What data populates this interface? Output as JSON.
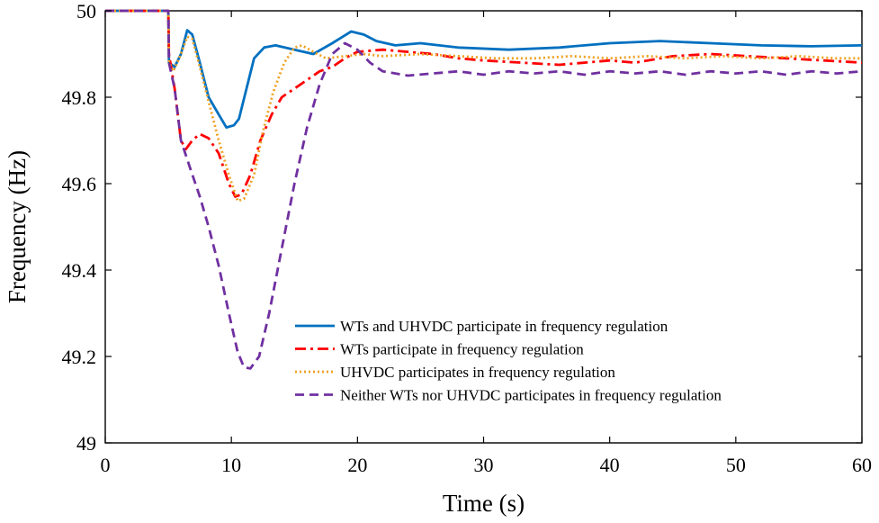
{
  "chart_data": {
    "type": "line",
    "title": "",
    "xlabel": "Time (s)",
    "ylabel": "Frequency (Hz)",
    "xlim": [
      0,
      60
    ],
    "ylim": [
      49,
      50
    ],
    "xticks": [
      0,
      10,
      20,
      30,
      40,
      50,
      60
    ],
    "yticks": [
      49,
      49.2,
      49.4,
      49.6,
      49.8,
      50
    ],
    "xtick_labels": [
      "0",
      "10",
      "20",
      "30",
      "40",
      "50",
      "60"
    ],
    "ytick_labels": [
      "49",
      "49.2",
      "49.4",
      "49.6",
      "49.8",
      "50"
    ],
    "grid": false,
    "legend_position": "bottom-right",
    "series": [
      {
        "name": "WTs and UHVDC participate in frequency regulation",
        "color": "#0070C0",
        "dash": "solid",
        "points": [
          [
            0,
            50
          ],
          [
            5,
            50
          ],
          [
            5.05,
            49.88
          ],
          [
            5.5,
            49.87
          ],
          [
            6,
            49.9
          ],
          [
            6.5,
            49.955
          ],
          [
            6.9,
            49.945
          ],
          [
            7.5,
            49.88
          ],
          [
            8.2,
            49.8
          ],
          [
            9,
            49.76
          ],
          [
            9.6,
            49.73
          ],
          [
            10.2,
            49.735
          ],
          [
            10.6,
            49.75
          ],
          [
            11.2,
            49.82
          ],
          [
            11.8,
            49.89
          ],
          [
            12.6,
            49.915
          ],
          [
            13.5,
            49.92
          ],
          [
            15,
            49.91
          ],
          [
            16.5,
            49.9
          ],
          [
            18,
            49.925
          ],
          [
            19.5,
            49.952
          ],
          [
            20.5,
            49.945
          ],
          [
            21.5,
            49.93
          ],
          [
            23,
            49.92
          ],
          [
            25,
            49.925
          ],
          [
            28,
            49.915
          ],
          [
            32,
            49.91
          ],
          [
            36,
            49.915
          ],
          [
            40,
            49.925
          ],
          [
            44,
            49.93
          ],
          [
            48,
            49.925
          ],
          [
            52,
            49.92
          ],
          [
            56,
            49.918
          ],
          [
            60,
            49.92
          ]
        ]
      },
      {
        "name": "WTs participate in frequency regulation",
        "color": "#FF0000",
        "dash": "12,5,3,5",
        "points": [
          [
            0,
            50
          ],
          [
            5,
            50
          ],
          [
            5.05,
            49.9
          ],
          [
            5.5,
            49.82
          ],
          [
            6,
            49.7
          ],
          [
            6.4,
            49.68
          ],
          [
            6.9,
            49.7
          ],
          [
            7.5,
            49.715
          ],
          [
            8.2,
            49.705
          ],
          [
            9,
            49.67
          ],
          [
            9.8,
            49.6
          ],
          [
            10.3,
            49.57
          ],
          [
            10.8,
            49.575
          ],
          [
            11.5,
            49.62
          ],
          [
            12.3,
            49.7
          ],
          [
            13.2,
            49.76
          ],
          [
            14,
            49.8
          ],
          [
            15,
            49.82
          ],
          [
            16,
            49.84
          ],
          [
            17,
            49.86
          ],
          [
            18,
            49.87
          ],
          [
            19,
            49.89
          ],
          [
            20,
            49.905
          ],
          [
            22,
            49.91
          ],
          [
            24,
            49.905
          ],
          [
            26,
            49.9
          ],
          [
            28,
            49.89
          ],
          [
            30,
            49.885
          ],
          [
            33,
            49.88
          ],
          [
            36,
            49.875
          ],
          [
            38,
            49.88
          ],
          [
            40,
            49.885
          ],
          [
            42,
            49.88
          ],
          [
            45,
            49.895
          ],
          [
            48,
            49.9
          ],
          [
            51,
            49.895
          ],
          [
            54,
            49.89
          ],
          [
            57,
            49.885
          ],
          [
            60,
            49.88
          ]
        ]
      },
      {
        "name": "UHVDC participates in frequency regulation",
        "color": "#F0A020",
        "dash": "2,3",
        "points": [
          [
            0,
            50
          ],
          [
            5,
            50
          ],
          [
            5.05,
            49.88
          ],
          [
            5.4,
            49.86
          ],
          [
            6,
            49.9
          ],
          [
            6.5,
            49.94
          ],
          [
            6.9,
            49.935
          ],
          [
            7.5,
            49.87
          ],
          [
            8.2,
            49.79
          ],
          [
            9,
            49.7
          ],
          [
            9.8,
            49.62
          ],
          [
            10.5,
            49.56
          ],
          [
            11,
            49.565
          ],
          [
            11.8,
            49.62
          ],
          [
            12.5,
            49.72
          ],
          [
            13.3,
            49.81
          ],
          [
            14.2,
            49.88
          ],
          [
            15,
            49.915
          ],
          [
            15.6,
            49.92
          ],
          [
            16.5,
            49.905
          ],
          [
            17.5,
            49.89
          ],
          [
            19,
            49.895
          ],
          [
            20.5,
            49.9
          ],
          [
            22,
            49.895
          ],
          [
            25,
            49.9
          ],
          [
            28,
            49.895
          ],
          [
            31,
            49.89
          ],
          [
            34,
            49.89
          ],
          [
            37,
            49.895
          ],
          [
            40,
            49.89
          ],
          [
            43,
            49.895
          ],
          [
            46,
            49.89
          ],
          [
            49,
            49.895
          ],
          [
            52,
            49.89
          ],
          [
            55,
            49.895
          ],
          [
            58,
            49.89
          ],
          [
            60,
            49.89
          ]
        ]
      },
      {
        "name": "Neither WTs nor UHVDC participates in frequency regulation",
        "color": "#7030A0",
        "dash": "10,6",
        "points": [
          [
            0,
            50
          ],
          [
            5,
            50
          ],
          [
            5.05,
            49.88
          ],
          [
            5.5,
            49.82
          ],
          [
            6,
            49.7
          ],
          [
            6.8,
            49.63
          ],
          [
            7.5,
            49.57
          ],
          [
            8.2,
            49.5
          ],
          [
            9,
            49.41
          ],
          [
            9.8,
            49.3
          ],
          [
            10.5,
            49.21
          ],
          [
            11,
            49.175
          ],
          [
            11.5,
            49.172
          ],
          [
            12.2,
            49.2
          ],
          [
            13,
            49.3
          ],
          [
            14,
            49.45
          ],
          [
            15,
            49.6
          ],
          [
            16,
            49.73
          ],
          [
            17,
            49.83
          ],
          [
            18,
            49.9
          ],
          [
            19,
            49.925
          ],
          [
            20,
            49.91
          ],
          [
            21,
            49.88
          ],
          [
            22,
            49.86
          ],
          [
            24,
            49.85
          ],
          [
            26,
            49.855
          ],
          [
            28,
            49.86
          ],
          [
            30,
            49.852
          ],
          [
            32,
            49.86
          ],
          [
            34,
            49.855
          ],
          [
            36,
            49.86
          ],
          [
            38,
            49.852
          ],
          [
            40,
            49.86
          ],
          [
            42,
            49.855
          ],
          [
            44,
            49.86
          ],
          [
            46,
            49.852
          ],
          [
            48,
            49.86
          ],
          [
            50,
            49.855
          ],
          [
            52,
            49.86
          ],
          [
            54,
            49.852
          ],
          [
            56,
            49.86
          ],
          [
            58,
            49.855
          ],
          [
            60,
            49.86
          ]
        ]
      }
    ]
  }
}
